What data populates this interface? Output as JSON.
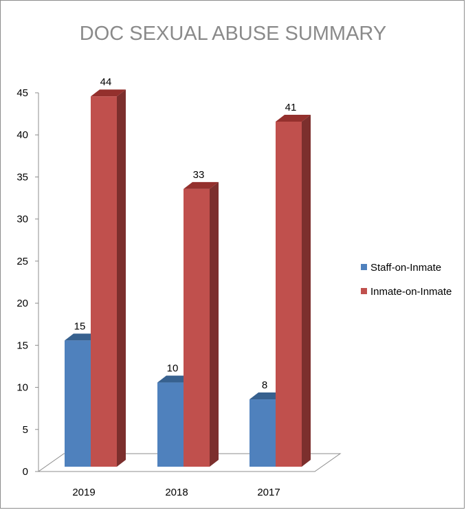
{
  "chart_data": {
    "type": "bar",
    "title": "DOC SEXUAL ABUSE SUMMARY",
    "xlabel": "",
    "ylabel": "",
    "categories": [
      "2019",
      "2018",
      "2017"
    ],
    "series": [
      {
        "name": "Staff-on-Inmate",
        "values": [
          15,
          10,
          8
        ],
        "color": "#4f81bd",
        "side_color": "#3a6194",
        "top_color": "#37618f"
      },
      {
        "name": "Inmate-on-Inmate",
        "values": [
          44,
          33,
          41
        ],
        "color": "#c0504d",
        "side_color": "#7c2f2d",
        "top_color": "#94302d"
      }
    ],
    "ylim": [
      0,
      45
    ],
    "yticks": [
      0,
      5,
      10,
      15,
      20,
      25,
      30,
      35,
      40,
      45
    ],
    "grid": false,
    "legend_position": "right",
    "style": "3d-clustered-column",
    "data_labels": true
  }
}
